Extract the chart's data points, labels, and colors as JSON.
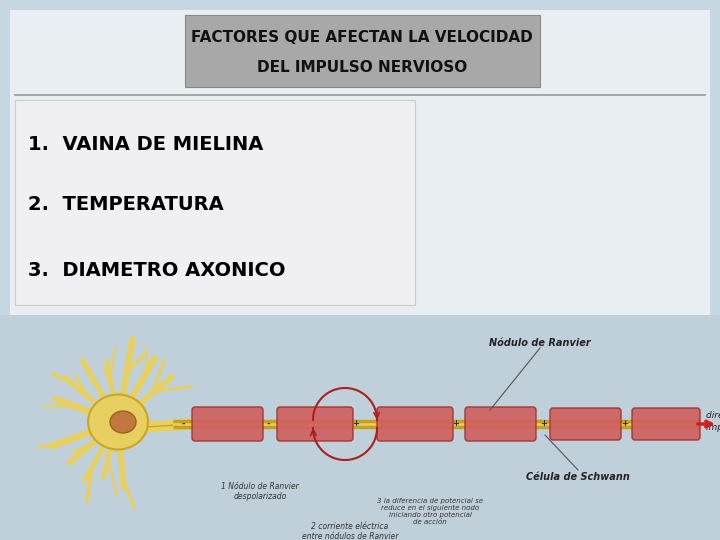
{
  "title_line1": "FACTORES QUE AFECTAN LA VELOCIDAD",
  "title_line2": "DEL IMPULSO NERVIOSO",
  "title_box_facecolor": "#a8a8a8",
  "title_box_edgecolor": "#888888",
  "title_text_color": "#111111",
  "bg_outer_color": "#c5d8e2",
  "bg_inner_color": "#e8eef2",
  "list_items": [
    "1.  VAINA DE MIELINA",
    "2.  TEMPERATURA",
    "3.  DIAMETRO AXONICO"
  ],
  "list_box_facecolor": "#f0f0f4",
  "list_box_edgecolor": "#cccccc",
  "list_text_color": "#000000",
  "separator_color": "#999999",
  "neuron_bg_color": "#c0d0da",
  "title_fontsize": 11,
  "list_fontsize": 14,
  "soma_color": "#e8d060",
  "soma_border": "#c8a820",
  "nucleus_color": "#c07840",
  "axon_color": "#e8d060",
  "myelin_color": "#d06060",
  "myelin_edge": "#a03030",
  "arrow_color": "#cc2020",
  "label_color": "#222222",
  "annotation_color": "#333333"
}
